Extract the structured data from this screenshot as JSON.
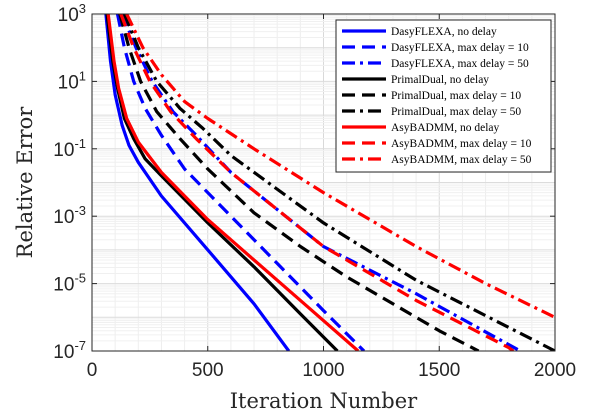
{
  "chart_data": {
    "type": "line",
    "xlabel": "Iteration Number",
    "ylabel": "Relative Error",
    "xlim": [
      0,
      2000
    ],
    "ylim_log10": [
      -7,
      3
    ],
    "yscale": "log",
    "grid": true,
    "legend_position": "top-right",
    "x_ticks": [
      "0",
      "500",
      "1000",
      "1500",
      "2000"
    ],
    "y_ticks": [
      {
        "base": "10",
        "exp": "3"
      },
      {
        "base": "10",
        "exp": "1"
      },
      {
        "base": "10",
        "exp": "-1"
      },
      {
        "base": "10",
        "exp": "-3"
      },
      {
        "base": "10",
        "exp": "-5"
      },
      {
        "base": "10",
        "exp": "-7"
      }
    ],
    "series": [
      {
        "name": "DasyFLEXA, no delay",
        "color": "#0000ff",
        "dash": "solid",
        "points": [
          [
            60,
            3
          ],
          [
            80,
            1.6
          ],
          [
            100,
            0.6
          ],
          [
            130,
            -0.3
          ],
          [
            160,
            -0.9
          ],
          [
            200,
            -1.4
          ],
          [
            300,
            -2.4
          ],
          [
            500,
            -4.0
          ],
          [
            700,
            -5.6
          ],
          [
            850,
            -7
          ]
        ]
      },
      {
        "name": "DasyFLEXA, max delay = 10",
        "color": "#0000ff",
        "dash": "dash",
        "points": [
          [
            110,
            3
          ],
          [
            140,
            2.0
          ],
          [
            180,
            1.0
          ],
          [
            230,
            0.2
          ],
          [
            300,
            -0.6
          ],
          [
            400,
            -1.6
          ],
          [
            600,
            -3.0
          ],
          [
            800,
            -4.4
          ],
          [
            1000,
            -5.8
          ],
          [
            1175,
            -7
          ]
        ]
      },
      {
        "name": "DasyFLEXA, max delay = 50",
        "color": "#0000ff",
        "dash": "dashdot",
        "points": [
          [
            130,
            3
          ],
          [
            190,
            2.0
          ],
          [
            260,
            1.0
          ],
          [
            350,
            0.1
          ],
          [
            450,
            -0.6
          ],
          [
            600,
            -1.7
          ],
          [
            1000,
            -3.9
          ],
          [
            1400,
            -5.3
          ],
          [
            1850,
            -7
          ]
        ]
      },
      {
        "name": "PrimalDual, no delay",
        "color": "#000000",
        "dash": "solid",
        "points": [
          [
            65,
            3
          ],
          [
            90,
            1.6
          ],
          [
            110,
            0.8
          ],
          [
            140,
            -0.1
          ],
          [
            180,
            -0.7
          ],
          [
            230,
            -1.3
          ],
          [
            300,
            -1.8
          ],
          [
            500,
            -3.2
          ],
          [
            700,
            -4.5
          ],
          [
            900,
            -5.9
          ],
          [
            1060,
            -7
          ]
        ]
      },
      {
        "name": "PrimalDual, max delay = 10",
        "color": "#000000",
        "dash": "dash",
        "points": [
          [
            120,
            3
          ],
          [
            160,
            2.0
          ],
          [
            210,
            1.0
          ],
          [
            280,
            0.1
          ],
          [
            380,
            -0.7
          ],
          [
            500,
            -1.6
          ],
          [
            700,
            -2.9
          ],
          [
            900,
            -3.9
          ],
          [
            1100,
            -4.8
          ],
          [
            1300,
            -5.6
          ],
          [
            1500,
            -6.4
          ],
          [
            1670,
            -7
          ]
        ]
      },
      {
        "name": "PrimalDual, max delay = 50",
        "color": "#000000",
        "dash": "dashdot",
        "points": [
          [
            140,
            3
          ],
          [
            200,
            2.0
          ],
          [
            280,
            1.0
          ],
          [
            380,
            0.2
          ],
          [
            480,
            -0.4
          ],
          [
            600,
            -1.2
          ],
          [
            1000,
            -3.2
          ],
          [
            1400,
            -4.9
          ],
          [
            1800,
            -6.3
          ],
          [
            2000,
            -7
          ]
        ]
      },
      {
        "name": "AsyBADMM, no delay",
        "color": "#ff0000",
        "dash": "solid",
        "points": [
          [
            70,
            3
          ],
          [
            95,
            1.6
          ],
          [
            115,
            0.8
          ],
          [
            150,
            -0.1
          ],
          [
            200,
            -0.8
          ],
          [
            300,
            -1.7
          ],
          [
            500,
            -3.1
          ],
          [
            700,
            -4.3
          ],
          [
            900,
            -5.5
          ],
          [
            1150,
            -7
          ]
        ]
      },
      {
        "name": "AsyBADMM, max delay = 10",
        "color": "#ff0000",
        "dash": "dash",
        "points": [
          [
            125,
            3
          ],
          [
            180,
            2.0
          ],
          [
            250,
            1.0
          ],
          [
            340,
            0.1
          ],
          [
            450,
            -0.7
          ],
          [
            600,
            -1.7
          ],
          [
            1000,
            -3.9
          ],
          [
            1400,
            -5.5
          ],
          [
            1800,
            -6.9
          ],
          [
            1820,
            -7
          ]
        ]
      },
      {
        "name": "AsyBADMM, max delay = 50",
        "color": "#ff0000",
        "dash": "dashdot",
        "points": [
          [
            150,
            3
          ],
          [
            220,
            2.0
          ],
          [
            300,
            1.2
          ],
          [
            400,
            0.4
          ],
          [
            500,
            -0.1
          ],
          [
            700,
            -1.0
          ],
          [
            1000,
            -2.3
          ],
          [
            1400,
            -3.9
          ],
          [
            1700,
            -5.0
          ],
          [
            2000,
            -6.0
          ]
        ]
      }
    ]
  }
}
